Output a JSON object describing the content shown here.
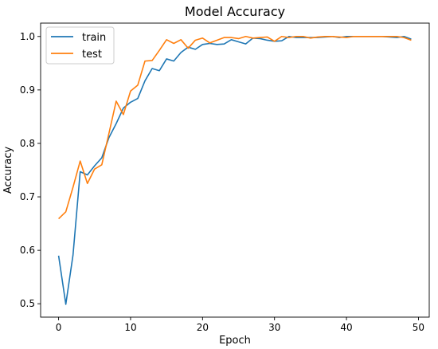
{
  "chart_data": {
    "type": "line",
    "title": "Model Accuracy",
    "xlabel": "Epoch",
    "ylabel": "Accuracy",
    "xlim": [
      -2.5,
      51.5
    ],
    "ylim": [
      0.475,
      1.025
    ],
    "xticks": [
      0,
      10,
      20,
      30,
      40,
      50
    ],
    "yticks": [
      0.5,
      0.6,
      0.7,
      0.8,
      0.9,
      1.0
    ],
    "xtick_labels": [
      "0",
      "10",
      "20",
      "30",
      "40",
      "50"
    ],
    "ytick_labels": [
      "0.5",
      "0.6",
      "0.7",
      "0.8",
      "0.9",
      "1.0"
    ],
    "grid": false,
    "legend_position": "top-left",
    "x": [
      0,
      1,
      2,
      3,
      4,
      5,
      6,
      7,
      8,
      9,
      10,
      11,
      12,
      13,
      14,
      15,
      16,
      17,
      18,
      19,
      20,
      21,
      22,
      23,
      24,
      25,
      26,
      27,
      28,
      29,
      30,
      31,
      32,
      33,
      34,
      35,
      36,
      37,
      38,
      39,
      40,
      41,
      42,
      43,
      44,
      45,
      46,
      47,
      48,
      49
    ],
    "series": [
      {
        "name": "train",
        "color": "#1f77b4",
        "values": [
          0.59,
          0.499,
          0.591,
          0.747,
          0.741,
          0.758,
          0.773,
          0.811,
          0.837,
          0.866,
          0.877,
          0.884,
          0.917,
          0.94,
          0.936,
          0.958,
          0.954,
          0.97,
          0.98,
          0.976,
          0.985,
          0.987,
          0.985,
          0.986,
          0.994,
          0.99,
          0.986,
          0.997,
          0.996,
          0.993,
          0.991,
          0.992,
          1.0,
          0.998,
          0.998,
          0.998,
          0.998,
          0.999,
          1.0,
          0.998,
          1.0,
          1.0,
          1.0,
          1.0,
          1.0,
          1.0,
          0.999,
          0.998,
          1.0,
          0.995
        ]
      },
      {
        "name": "test",
        "color": "#ff7f0e",
        "values": [
          0.659,
          0.672,
          0.718,
          0.767,
          0.725,
          0.752,
          0.76,
          0.819,
          0.879,
          0.854,
          0.898,
          0.909,
          0.954,
          0.955,
          0.974,
          0.994,
          0.987,
          0.994,
          0.978,
          0.993,
          0.997,
          0.988,
          0.993,
          0.998,
          0.998,
          0.996,
          1.0,
          0.997,
          0.998,
          0.999,
          0.991,
          1.0,
          0.998,
          1.0,
          1.0,
          0.997,
          0.999,
          1.0,
          1.0,
          0.999,
          0.998,
          1.0,
          1.0,
          1.0,
          1.0,
          1.0,
          1.0,
          1.0,
          0.998,
          0.993
        ]
      }
    ]
  }
}
